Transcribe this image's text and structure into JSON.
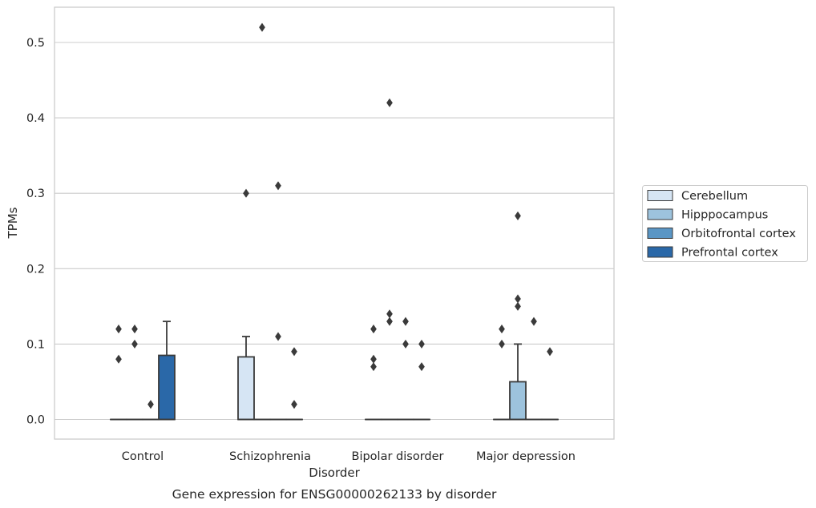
{
  "chart_data": {
    "type": "box",
    "categories": [
      "Control",
      "Schizophrenia",
      "Bipolar disorder",
      "Major depression"
    ],
    "xlabel": "Disorder",
    "ylabel": "TPMs",
    "caption": "Gene expression for ENSG00000262133 by disorder",
    "ylim": [
      -0.026,
      0.548
    ],
    "yticks": [
      "0.0",
      "0.1",
      "0.2",
      "0.3",
      "0.4",
      "0.5"
    ],
    "grid": true,
    "legend_position": "right",
    "series": [
      {
        "name": "Cerebellum",
        "color": "#d6e5f4",
        "boxes": [
          {
            "q1": 0,
            "median": 0,
            "q3": 0,
            "whisker_low": 0,
            "whisker_high": 0,
            "outliers": [
              0.08,
              0.12
            ]
          },
          {
            "q1": 0,
            "median": 0,
            "q3": 0.083,
            "whisker_low": 0,
            "whisker_high": 0.11,
            "outliers": [
              0.3
            ]
          },
          {
            "q1": 0,
            "median": 0,
            "q3": 0,
            "whisker_low": 0,
            "whisker_high": 0,
            "outliers": [
              0.07,
              0.08,
              0.12
            ]
          },
          {
            "q1": 0,
            "median": 0,
            "q3": 0,
            "whisker_low": 0,
            "whisker_high": 0,
            "outliers": [
              0.1,
              0.12
            ]
          }
        ]
      },
      {
        "name": "Hipppocampus",
        "color": "#9dc3dd",
        "boxes": [
          {
            "q1": 0,
            "median": 0,
            "q3": 0,
            "whisker_low": 0,
            "whisker_high": 0,
            "outliers": [
              0.1,
              0.12
            ]
          },
          {
            "q1": 0,
            "median": 0,
            "q3": 0,
            "whisker_low": 0,
            "whisker_high": 0,
            "outliers": [
              0.52
            ]
          },
          {
            "q1": 0,
            "median": 0,
            "q3": 0,
            "whisker_low": 0,
            "whisker_high": 0,
            "outliers": [
              0.13,
              0.14,
              0.42
            ]
          },
          {
            "q1": 0,
            "median": 0,
            "q3": 0.05,
            "whisker_low": 0,
            "whisker_high": 0.1,
            "outliers": [
              0.15,
              0.16,
              0.27
            ]
          }
        ]
      },
      {
        "name": "Orbitofrontal cortex",
        "color": "#5a96c5",
        "boxes": [
          {
            "q1": 0,
            "median": 0,
            "q3": 0,
            "whisker_low": 0,
            "whisker_high": 0,
            "outliers": [
              0.02
            ]
          },
          {
            "q1": 0,
            "median": 0,
            "q3": 0,
            "whisker_low": 0,
            "whisker_high": 0,
            "outliers": [
              0.11,
              0.31
            ]
          },
          {
            "q1": 0,
            "median": 0,
            "q3": 0,
            "whisker_low": 0,
            "whisker_high": 0,
            "outliers": [
              0.1,
              0.13
            ]
          },
          {
            "q1": 0,
            "median": 0,
            "q3": 0,
            "whisker_low": 0,
            "whisker_high": 0,
            "outliers": [
              0.13
            ]
          }
        ]
      },
      {
        "name": "Prefrontal cortex",
        "color": "#2a68a8",
        "boxes": [
          {
            "q1": 0,
            "median": 0,
            "q3": 0.085,
            "whisker_low": 0,
            "whisker_high": 0.13,
            "outliers": []
          },
          {
            "q1": 0,
            "median": 0,
            "q3": 0,
            "whisker_low": 0,
            "whisker_high": 0,
            "outliers": [
              0.02,
              0.09
            ]
          },
          {
            "q1": 0,
            "median": 0,
            "q3": 0,
            "whisker_low": 0,
            "whisker_high": 0,
            "outliers": [
              0.07,
              0.1
            ]
          },
          {
            "q1": 0,
            "median": 0,
            "q3": 0,
            "whisker_low": 0,
            "whisker_high": 0,
            "outliers": [
              0.09
            ]
          }
        ]
      }
    ]
  }
}
